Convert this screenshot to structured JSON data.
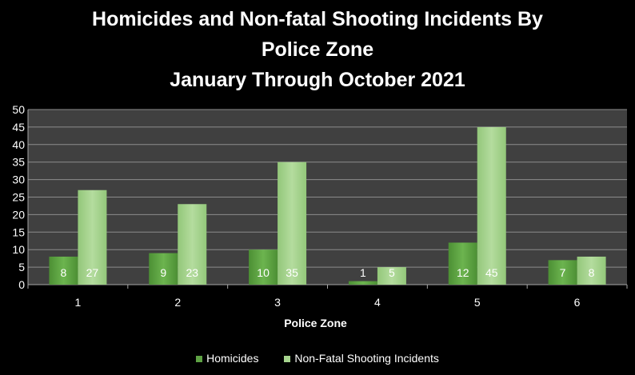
{
  "chart_data": {
    "type": "bar",
    "title_lines": [
      "Homicides and Non-fatal Shooting Incidents By",
      "Police Zone",
      "January  Through October 2021"
    ],
    "xlabel": "Police Zone",
    "ylabel": "",
    "categories": [
      "1",
      "2",
      "3",
      "4",
      "5",
      "6"
    ],
    "ylim": [
      0,
      50
    ],
    "yticks": [
      "0",
      "5",
      "10",
      "15",
      "20",
      "25",
      "30",
      "35",
      "40",
      "45",
      "50"
    ],
    "series": [
      {
        "name": "Homicides",
        "values": [
          8,
          9,
          10,
          1,
          12,
          7
        ],
        "labels": [
          "8",
          "9",
          "10",
          "1",
          "12",
          "7"
        ],
        "color": "#5ea244"
      },
      {
        "name": "Non-Fatal Shooting Incidents",
        "values": [
          27,
          23,
          35,
          5,
          45,
          8
        ],
        "labels": [
          "27",
          "23",
          "35",
          "5",
          "45",
          "8"
        ],
        "color": "#a6d48e"
      }
    ],
    "grid": true,
    "legend_position": "bottom",
    "background": "#000000",
    "plot_background": "#404040"
  }
}
